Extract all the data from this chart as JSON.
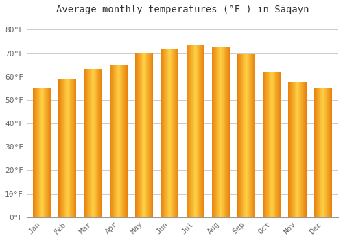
{
  "title": "Average monthly temperatures (°F ) in Sāqayn",
  "months": [
    "Jan",
    "Feb",
    "Mar",
    "Apr",
    "May",
    "Jun",
    "Jul",
    "Aug",
    "Sep",
    "Oct",
    "Nov",
    "Dec"
  ],
  "values": [
    55,
    59,
    63,
    65,
    70,
    72,
    73.5,
    72.5,
    69.5,
    62,
    58,
    55
  ],
  "bar_color_left": "#E8820C",
  "bar_color_center": "#FFD045",
  "bar_color_right": "#E8820C",
  "yticks": [
    0,
    10,
    20,
    30,
    40,
    50,
    60,
    70,
    80
  ],
  "ytick_labels": [
    "0°F",
    "10°F",
    "20°F",
    "30°F",
    "40°F",
    "50°F",
    "60°F",
    "70°F",
    "80°F"
  ],
  "ylim": [
    0,
    85
  ],
  "background_color": "#FFFFFF",
  "grid_color": "#CCCCCC",
  "title_fontsize": 10,
  "tick_fontsize": 8,
  "font_family": "monospace"
}
